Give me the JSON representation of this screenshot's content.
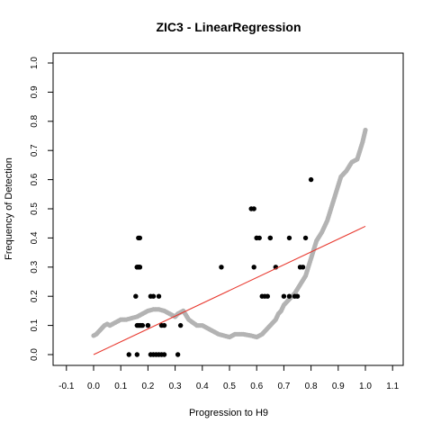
{
  "chart_data": {
    "type": "scatter",
    "title": "ZIC3 - LinearRegression",
    "xlabel": "Progression to H9",
    "ylabel": "Frequency of Detection",
    "xlim": [
      -0.12,
      1.15
    ],
    "ylim": [
      -0.04,
      1.04
    ],
    "x_ticks": [
      "-0.1",
      "0.0",
      "0.1",
      "0.2",
      "0.3",
      "0.4",
      "0.5",
      "0.6",
      "0.7",
      "0.8",
      "0.9",
      "1.0",
      "1.1"
    ],
    "y_ticks": [
      "0.0",
      "0.1",
      "0.2",
      "0.3",
      "0.4",
      "0.5",
      "0.6",
      "0.7",
      "0.8",
      "0.9",
      "1.0"
    ],
    "grid": false,
    "colors": {
      "points": "#000000",
      "smooth": "#b3b3b3",
      "fit": "#e8392f"
    },
    "series": [
      {
        "type": "scatter",
        "color": "#000000",
        "x": [
          0.13,
          0.16,
          0.165,
          0.17,
          0.16,
          0.165,
          0.17,
          0.155,
          0.16,
          0.165,
          0.16,
          0.165,
          0.17,
          0.175,
          0.18,
          0.2,
          0.21,
          0.22,
          0.24,
          0.25,
          0.26,
          0.17,
          0.2,
          0.21,
          0.22,
          0.23,
          0.24,
          0.25,
          0.26,
          0.31,
          0.32,
          0.47,
          0.58,
          0.59,
          0.59,
          0.6,
          0.6,
          0.61,
          0.62,
          0.63,
          0.64,
          0.65,
          0.65,
          0.67,
          0.7,
          0.72,
          0.72,
          0.74,
          0.75,
          0.76,
          0.77,
          0.78,
          0.8
        ],
        "y": [
          0.0,
          0.0,
          0.4,
          0.4,
          0.3,
          0.3,
          0.3,
          0.2,
          0.1,
          0.1,
          0.3,
          0.3,
          0.3,
          0.1,
          0.1,
          0.1,
          0.2,
          0.2,
          0.2,
          0.1,
          0.1,
          0.1,
          0.1,
          0.0,
          0.0,
          0.0,
          0.0,
          0.0,
          0.0,
          0.0,
          0.1,
          0.3,
          0.5,
          0.5,
          0.3,
          0.4,
          0.4,
          0.4,
          0.2,
          0.2,
          0.2,
          0.4,
          0.4,
          0.3,
          0.2,
          0.4,
          0.2,
          0.2,
          0.2,
          0.3,
          0.3,
          0.4,
          0.6
        ]
      },
      {
        "type": "line",
        "style": "smooth-dots",
        "color": "#b3b3b3",
        "x": [
          0.0,
          0.01,
          0.02,
          0.03,
          0.04,
          0.05,
          0.06,
          0.08,
          0.1,
          0.12,
          0.14,
          0.16,
          0.18,
          0.2,
          0.22,
          0.24,
          0.26,
          0.28,
          0.3,
          0.31,
          0.33,
          0.35,
          0.38,
          0.4,
          0.42,
          0.44,
          0.46,
          0.48,
          0.5,
          0.52,
          0.55,
          0.58,
          0.6,
          0.62,
          0.63,
          0.65,
          0.67,
          0.68,
          0.69,
          0.7,
          0.72,
          0.74,
          0.76,
          0.78,
          0.8,
          0.82,
          0.84,
          0.86,
          0.88,
          0.9,
          0.91,
          0.93,
          0.95,
          0.97,
          0.99,
          1.0
        ],
        "y": [
          0.065,
          0.07,
          0.08,
          0.09,
          0.1,
          0.105,
          0.1,
          0.11,
          0.12,
          0.12,
          0.125,
          0.13,
          0.14,
          0.15,
          0.155,
          0.155,
          0.15,
          0.14,
          0.13,
          0.14,
          0.15,
          0.12,
          0.1,
          0.1,
          0.09,
          0.08,
          0.07,
          0.065,
          0.06,
          0.07,
          0.07,
          0.065,
          0.06,
          0.07,
          0.08,
          0.1,
          0.12,
          0.14,
          0.15,
          0.17,
          0.19,
          0.21,
          0.24,
          0.27,
          0.33,
          0.39,
          0.42,
          0.46,
          0.52,
          0.58,
          0.61,
          0.63,
          0.66,
          0.67,
          0.73,
          0.77
        ]
      },
      {
        "type": "line",
        "style": "regression",
        "color": "#e8392f",
        "x": [
          0.0,
          1.0
        ],
        "y": [
          0.0,
          0.44
        ]
      }
    ]
  }
}
